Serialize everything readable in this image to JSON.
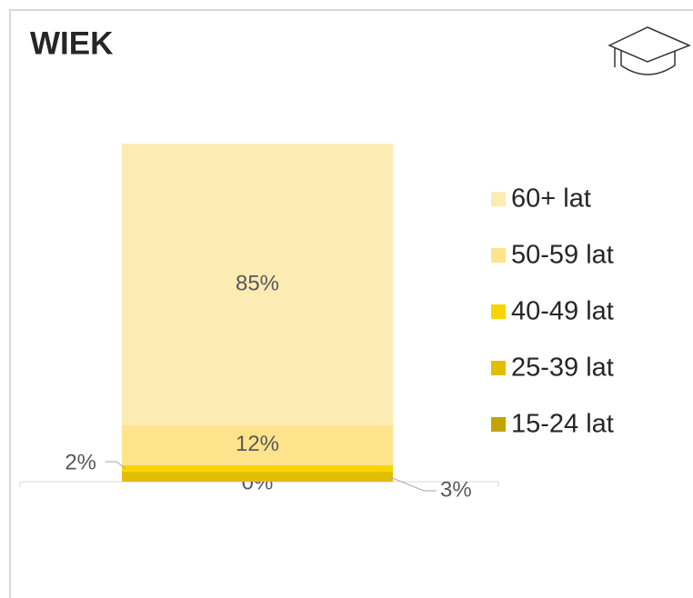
{
  "chart_data": {
    "type": "stacked-bar",
    "title": "WIEK",
    "categories": [
      null
    ],
    "series": [
      {
        "name": "15-24 lat",
        "color": "#c4a300",
        "values": [
          0
        ],
        "value_labels": [
          "0%"
        ]
      },
      {
        "name": "25-39 lat",
        "color": "#e3bd00",
        "values": [
          3
        ],
        "value_labels": [
          "3%"
        ]
      },
      {
        "name": "40-49 lat",
        "color": "#f9d500",
        "values": [
          2
        ],
        "value_labels": [
          "2%"
        ]
      },
      {
        "name": "50-59 lat",
        "color": "#fde48c",
        "values": [
          12
        ],
        "value_labels": [
          "12%"
        ]
      },
      {
        "name": "60+ lat",
        "color": "#fdebb4",
        "values": [
          85
        ],
        "value_labels": [
          "85%"
        ]
      }
    ],
    "ylim": [
      0,
      102
    ]
  }
}
